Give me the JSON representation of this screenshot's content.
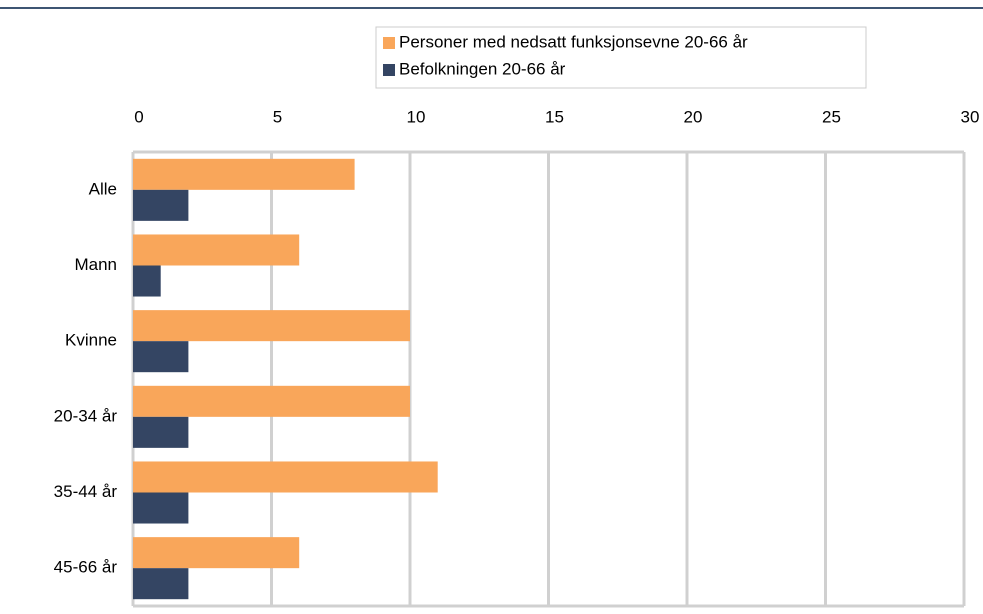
{
  "chart_data": {
    "type": "barh",
    "categories": [
      "Alle",
      "Mann",
      "Kvinne",
      "20-34 år",
      "35-44 år",
      "45-66 år"
    ],
    "series": [
      {
        "name": "Personer med nedsatt funksjonsevne 20-66 år",
        "color": "#f9a65a",
        "values": [
          8,
          6,
          10,
          10,
          11,
          6
        ]
      },
      {
        "name": "Befolkningen 20-66 år",
        "color": "#344563",
        "values": [
          2,
          1,
          2,
          2,
          2,
          2
        ]
      }
    ],
    "xlim": [
      0,
      30
    ],
    "xticks": [
      0,
      5,
      10,
      15,
      20,
      25,
      30
    ],
    "grid": true
  }
}
